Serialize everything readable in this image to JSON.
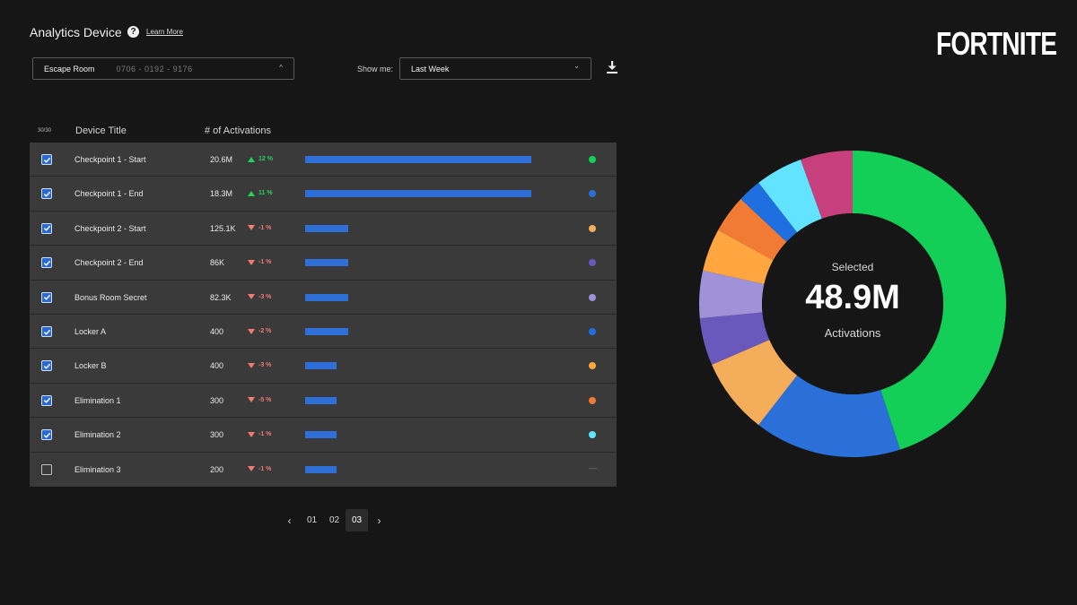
{
  "header": {
    "title": "Analytics Device",
    "help_icon": "?",
    "learn_more": "Learn More",
    "logo": "FORTNITE"
  },
  "project_select": {
    "name": "Escape Room",
    "id": "0706 - 0192 - 9176",
    "chevron": "^"
  },
  "show_me": {
    "label": "Show me:",
    "value": "Last Week",
    "chevron": "⌄"
  },
  "table": {
    "selected_count": "30/30",
    "col_title": "Device Title",
    "col_activations": "# of Activations",
    "rows": [
      {
        "checked": true,
        "title": "Checkpoint 1 - Start",
        "value": "20.6M",
        "trend_dir": "up",
        "trend": "12 %",
        "level": 1.0,
        "color": "#13cf58"
      },
      {
        "checked": true,
        "title": "Checkpoint 1 - End",
        "value": "18.3M",
        "trend_dir": "up",
        "trend": "11 %",
        "level": 1.0,
        "color": "#2b70d9"
      },
      {
        "checked": true,
        "title": "Checkpoint 2 - Start",
        "value": "125.1K",
        "trend_dir": "down",
        "trend": "-1 %",
        "level": 0.19,
        "color": "#f4ad5b"
      },
      {
        "checked": true,
        "title": "Checkpoint 2 - End",
        "value": "86K",
        "trend_dir": "down",
        "trend": "-1 %",
        "level": 0.19,
        "color": "#6a59bd"
      },
      {
        "checked": true,
        "title": "Bonus Room Secret",
        "value": "82.3K",
        "trend_dir": "down",
        "trend": "-3 %",
        "level": 0.19,
        "color": "#a092d8"
      },
      {
        "checked": true,
        "title": "Locker A",
        "value": "400",
        "trend_dir": "down",
        "trend": "-2 %",
        "level": 0.19,
        "color": "#1f6fe0"
      },
      {
        "checked": true,
        "title": "Locker B",
        "value": "400",
        "trend_dir": "down",
        "trend": "-3 %",
        "level": 0.14,
        "color": "#ffa640"
      },
      {
        "checked": true,
        "title": "Elimination 1",
        "value": "300",
        "trend_dir": "down",
        "trend": "-5 %",
        "level": 0.14,
        "color": "#f17b34"
      },
      {
        "checked": true,
        "title": "Elimination 2",
        "value": "300",
        "trend_dir": "down",
        "trend": "-1 %",
        "level": 0.14,
        "color": "#62e3ff"
      },
      {
        "checked": false,
        "title": "Elimination 3",
        "value": "200",
        "trend_dir": "down",
        "trend": "-1 %",
        "level": 0.14,
        "color": ""
      }
    ]
  },
  "pagination": {
    "prev": "‹",
    "pages": [
      "01",
      "02",
      "03"
    ],
    "active": "03",
    "next": "›"
  },
  "summary": {
    "top": "Selected",
    "value": "48.9M",
    "bottom": "Activations"
  },
  "chart_data": {
    "type": "pie",
    "slices": [
      {
        "label": "Checkpoint 1 - Start",
        "value": 45,
        "color": "#13cf58"
      },
      {
        "label": "Checkpoint 1 - End",
        "value": 15.5,
        "color": "#2b70d9"
      },
      {
        "label": "Checkpoint 2 - Start",
        "value": 8,
        "color": "#f4ad5b"
      },
      {
        "label": "Checkpoint 2 - End",
        "value": 5,
        "color": "#6a59bd"
      },
      {
        "label": "Bonus Room Secret",
        "value": 5,
        "color": "#a092d8"
      },
      {
        "label": "Locker B",
        "value": 4.5,
        "color": "#ffa640"
      },
      {
        "label": "Elimination 1",
        "value": 4,
        "color": "#f17b34"
      },
      {
        "label": "Locker A",
        "value": 2.5,
        "color": "#1f6fe0"
      },
      {
        "label": "Elimination 2",
        "value": 5,
        "color": "#62e3ff"
      },
      {
        "label": "Other",
        "value": 5.5,
        "color": "#c83f7e"
      }
    ]
  }
}
